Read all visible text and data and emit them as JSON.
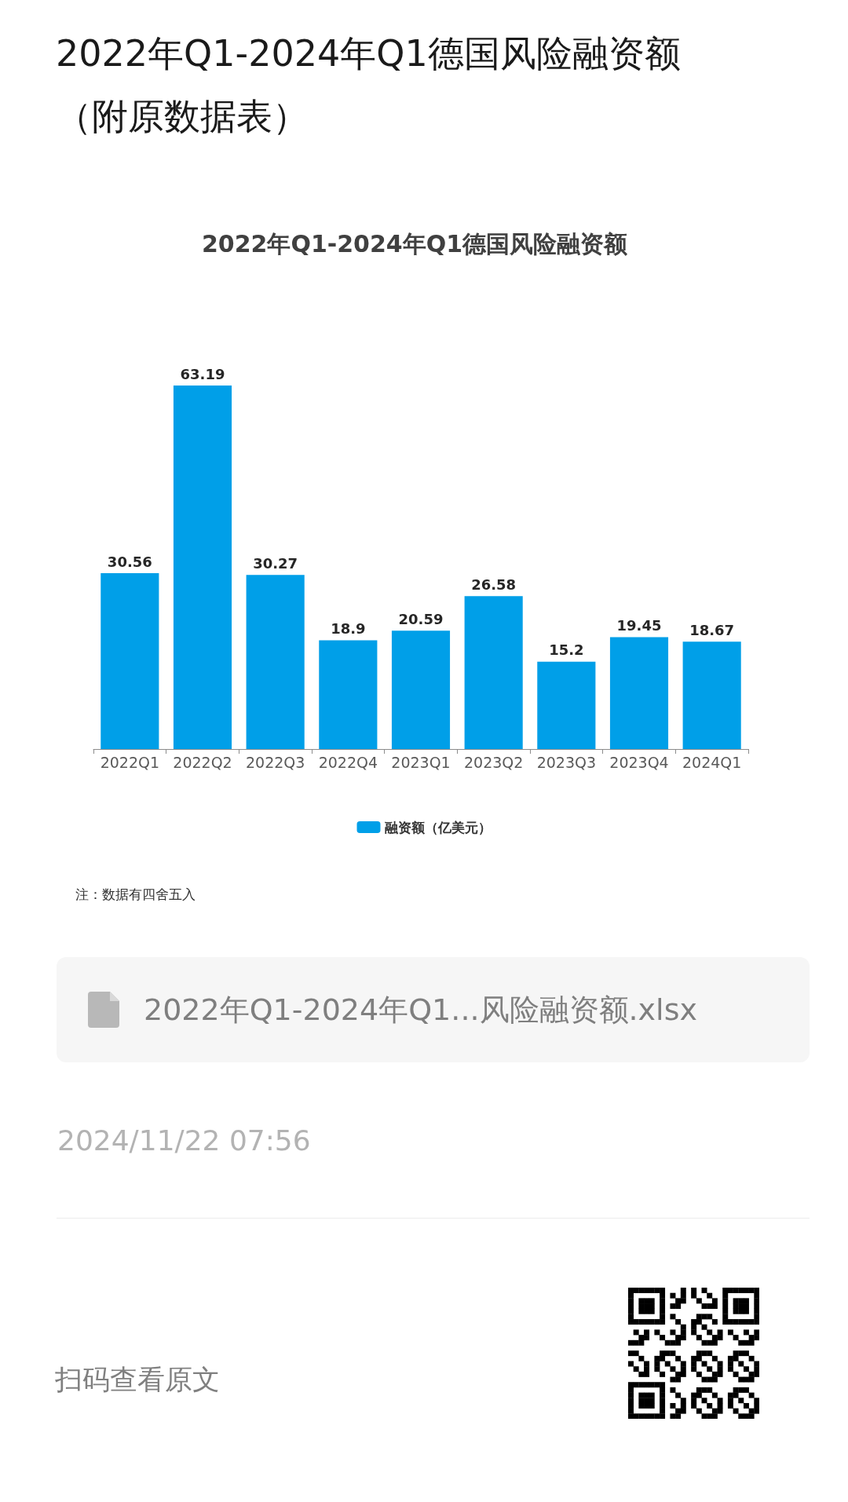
{
  "chart_data": {
    "type": "bar",
    "title": "2022年Q1-2024年Q1德国风险融资额（附原数据表）",
    "subtitle": "2022年Q1-2024年Q1德国风险融资额",
    "categories": [
      "2022Q1",
      "2022Q2",
      "2022Q3",
      "2022Q4",
      "2023Q1",
      "2023Q2",
      "2023Q3",
      "2023Q4",
      "2024Q1"
    ],
    "series": [
      {
        "name": "融资额（亿美元）",
        "color": "#009fe8",
        "values": [
          30.56,
          63.19,
          30.27,
          18.9,
          20.59,
          26.58,
          15.2,
          19.45,
          18.67
        ]
      }
    ],
    "data_labels": true,
    "legend": "bottom",
    "tick_labels": "x",
    "annotations": [
      "注：数据有四舍五入",
      "2022年Q1-2024年Q1...风险融资额.xlsx",
      "2024/11/22 07:56",
      "扫码查看原文"
    ]
  }
}
